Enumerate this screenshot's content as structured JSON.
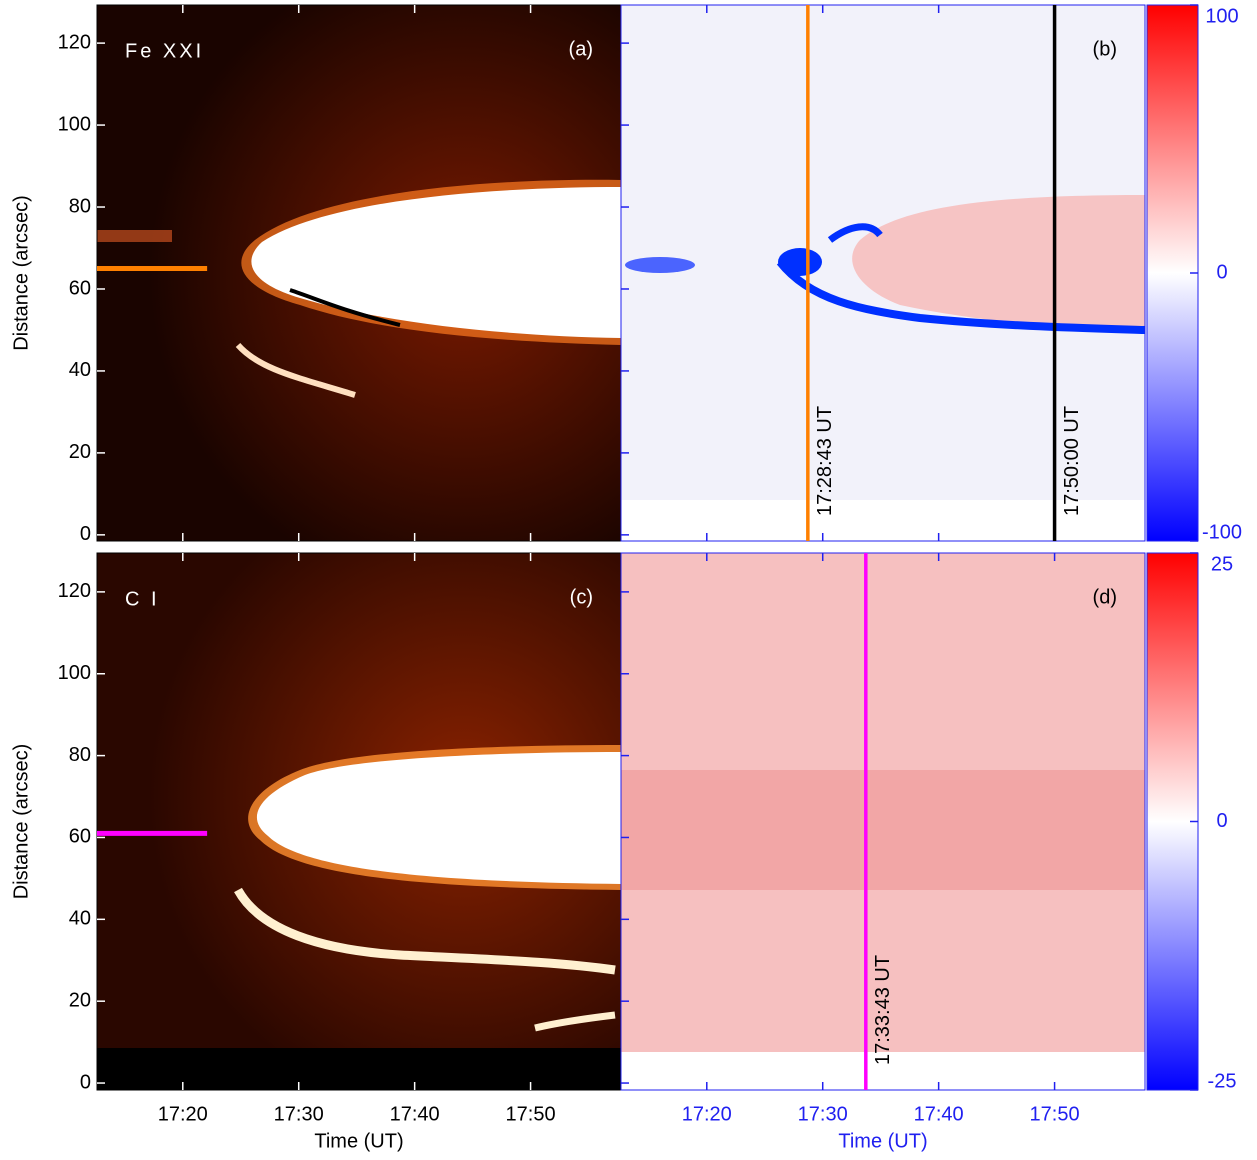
{
  "chart_data": [
    {
      "type": "heatmap",
      "title": "Fe XXI",
      "panel": "(a)",
      "ylabel": "Distance (arcsec)",
      "xlim": [
        "17:12:36",
        "17:57:48"
      ],
      "ylim": [
        -1.5,
        129.3
      ],
      "yticks": [
        0,
        20,
        40,
        60,
        80,
        100,
        120
      ],
      "hlines": [
        {
          "y": 65,
          "x": [
            "17:12:36",
            "17:22:06"
          ],
          "color": "#ff8000"
        }
      ]
    },
    {
      "type": "heatmap",
      "panel": "(b)",
      "xlim": [
        "17:12:36",
        "17:57:48"
      ],
      "ylim": [
        -1.5,
        129.3
      ],
      "vlines": [
        {
          "x": "17:28:43",
          "label": "17:28:43 UT",
          "color": "#ff8000"
        },
        {
          "x": "17:50:00",
          "label": "17:50:00 UT",
          "color": "#000000"
        }
      ],
      "colorbar": {
        "lim": [
          -100,
          100
        ],
        "ticks": [
          -100,
          0,
          100
        ]
      }
    },
    {
      "type": "heatmap",
      "title": "C I",
      "panel": "(c)",
      "ylabel": "Distance (arcsec)",
      "xlabel": "Time (UT)",
      "xlim": [
        "17:12:36",
        "17:57:48"
      ],
      "ylim": [
        -1.7,
        129.5
      ],
      "xticks": [
        "17:20",
        "17:30",
        "17:40",
        "17:50"
      ],
      "yticks": [
        0,
        20,
        40,
        60,
        80,
        100,
        120
      ],
      "hlines": [
        {
          "y": 61,
          "x": [
            "17:12:36",
            "17:22:06"
          ],
          "color": "#ff00ff"
        }
      ]
    },
    {
      "type": "heatmap",
      "panel": "(d)",
      "xlabel": "Time (UT)",
      "xlim": [
        "17:12:36",
        "17:57:48"
      ],
      "ylim": [
        -1.7,
        129.5
      ],
      "xticks": [
        "17:20",
        "17:30",
        "17:40",
        "17:50"
      ],
      "vlines": [
        {
          "x": "17:33:43",
          "label": "17:33:43 UT",
          "color": "#ff00ff"
        }
      ],
      "colorbar": {
        "lim": [
          -25,
          25
        ],
        "ticks": [
          -25,
          0,
          25
        ]
      }
    }
  ]
}
